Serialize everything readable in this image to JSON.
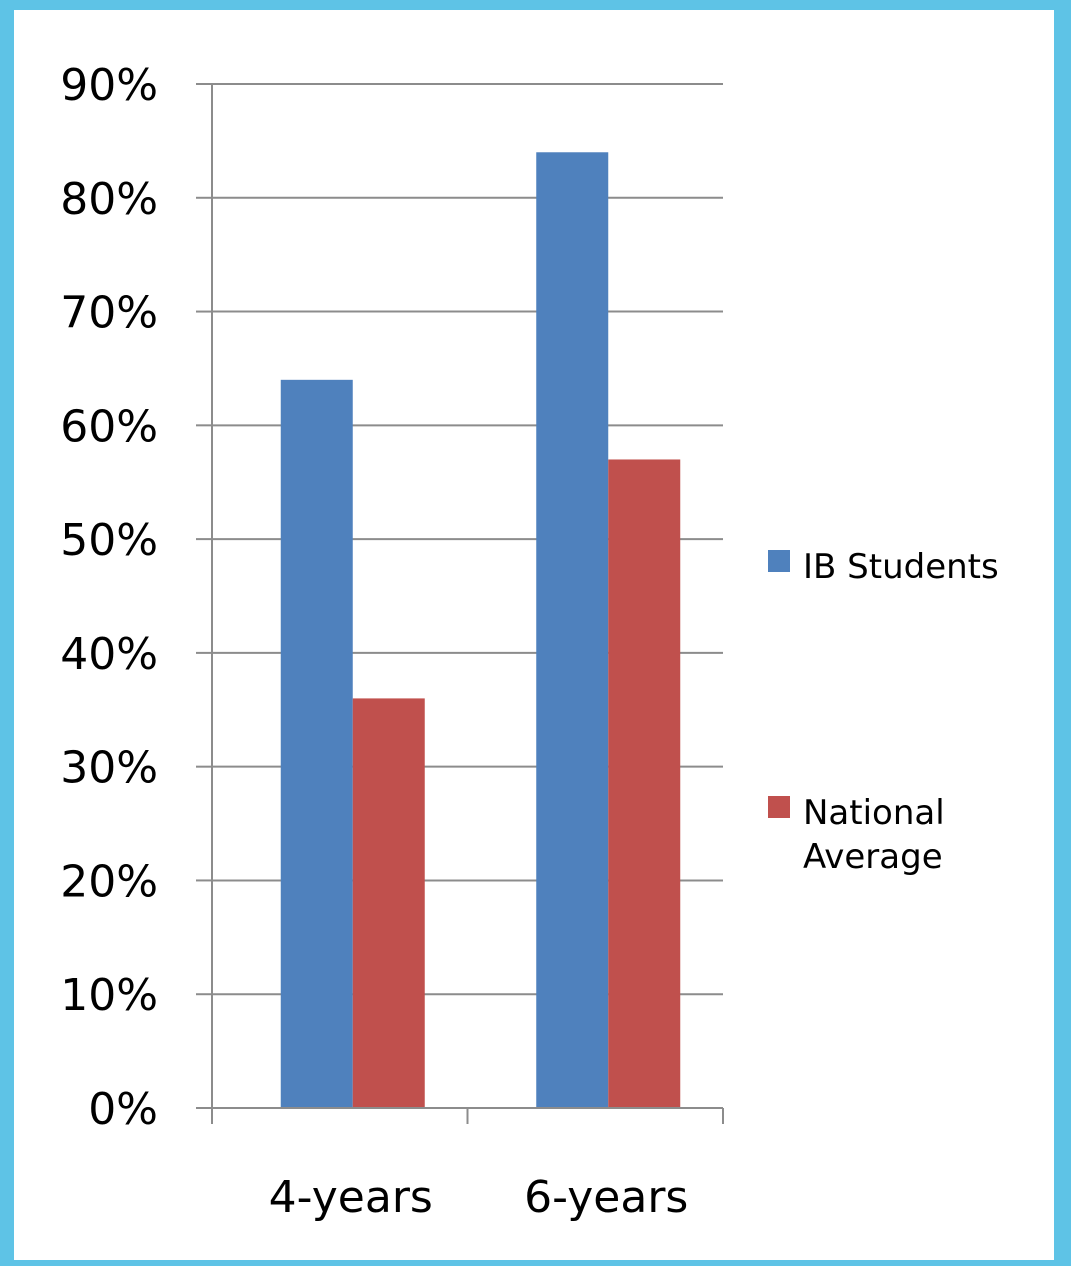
{
  "chart_data": {
    "type": "bar",
    "categories": [
      "4-years",
      "6-years"
    ],
    "series": [
      {
        "name": "IB Students",
        "values": [
          64,
          84
        ],
        "color": "#4f81bd"
      },
      {
        "name": "National Average",
        "values": [
          36,
          57
        ],
        "color": "#c0504d"
      }
    ],
    "y_ticks": [
      "0%",
      "10%",
      "20%",
      "30%",
      "40%",
      "50%",
      "60%",
      "70%",
      "80%",
      "90%"
    ],
    "ylim": [
      0,
      90
    ],
    "grid": true,
    "legend_position": "right",
    "title": "",
    "xlabel": "",
    "ylabel": ""
  }
}
